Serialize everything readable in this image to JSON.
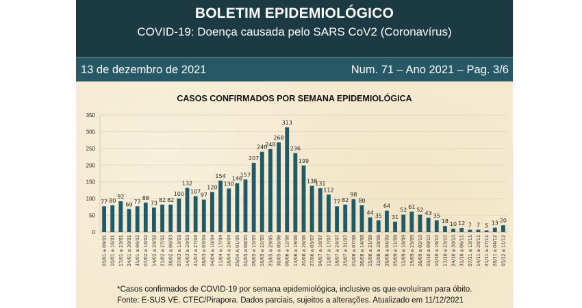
{
  "header": {
    "title": "BOLETIM EPIDEMIOLÓGICO",
    "subtitle": "COVID-19: Doença  causada pelo SARS CoV2 (Coronavírus)",
    "date": "13 de dezembro de 2021",
    "issue": "Num. 71 – Ano 2021 – Pag. 3/6"
  },
  "colors": {
    "header_bg": "#1b3a44",
    "band_bg": "#265866",
    "bar": "#1f5a68",
    "paper": "#f5ead0"
  },
  "footnote": {
    "line1": "*Casos confirmados de COVID-19 por semana epidemiológica, inclusive os que evoluíram para óbito.",
    "line2": "Fonte: E-SUS VE. CTEC/Pirapora. Dados parciais, sujeitos a alterações. Atualizado em 11/12/2021"
  },
  "chart_data": {
    "type": "bar",
    "title": "CASOS CONFIRMADOS POR SEMANA EPIDEMIOLÓGICA",
    "xlabel": "",
    "ylabel": "",
    "ylim": [
      0,
      350
    ],
    "yticks": [
      0,
      50,
      100,
      150,
      200,
      250,
      300,
      350
    ],
    "grid": true,
    "legend": "none",
    "categories": [
      "03/01 a 09/01",
      "10/01 a 16/01",
      "17/01 a 23/01",
      "24/01 a 30/01",
      "31/01 a 06/02",
      "07/02 a 13/02",
      "14/02 a 20/02",
      "21/02 a 27/02",
      "28/02 a 06/03",
      "07/03 a 13/03",
      "14/03 a 20/03",
      "21/03 a 27/03",
      "28/03 a 03/04",
      "04/04 a 10/04",
      "11/04 a 17/04",
      "18/04 a 24/04",
      "25/04 A 01/05",
      "02/05 a 08/05",
      "09/05 a 15/05",
      "16/05 a 22/05",
      "23/05 a 29/05",
      "30/05 a 05/06",
      "06/06 a 12/06",
      "13/06 a 19/06",
      "20/06 a 26/06",
      "27/06 a 03/07",
      "04/07 a 10/07",
      "11/07 a 17/07",
      "18/07 a 24/07",
      "25/07 a 31/07",
      "01/08 a 07/08",
      "08/08 a 14/08",
      "15/08 a 21/08",
      "22/08 a 28/08",
      "29/08 a 04/09",
      "05/09 a 11/09",
      "12/09 a 18/09",
      "19/09 a 25/09",
      "26/09 a 02/10",
      "03/10 a 09/10",
      "10/10 a 16/10",
      "17/10 a 23/10",
      "24/10 a 30/10",
      "31/10 a 06/11",
      "07/11 a 13/11",
      "14/11 a 20/11",
      "21/11 a 27/11",
      "28/11 a 04/12",
      "05/12 a 11/12"
    ],
    "values": [
      77,
      80,
      92,
      69,
      77,
      88,
      73,
      82,
      82,
      100,
      132,
      107,
      97,
      120,
      154,
      130,
      146,
      157,
      207,
      240,
      248,
      268,
      313,
      236,
      199,
      138,
      131,
      112,
      77,
      82,
      98,
      80,
      44,
      35,
      64,
      31,
      52,
      61,
      52,
      43,
      35,
      18,
      10,
      12,
      7,
      7,
      5,
      13,
      20
    ]
  }
}
